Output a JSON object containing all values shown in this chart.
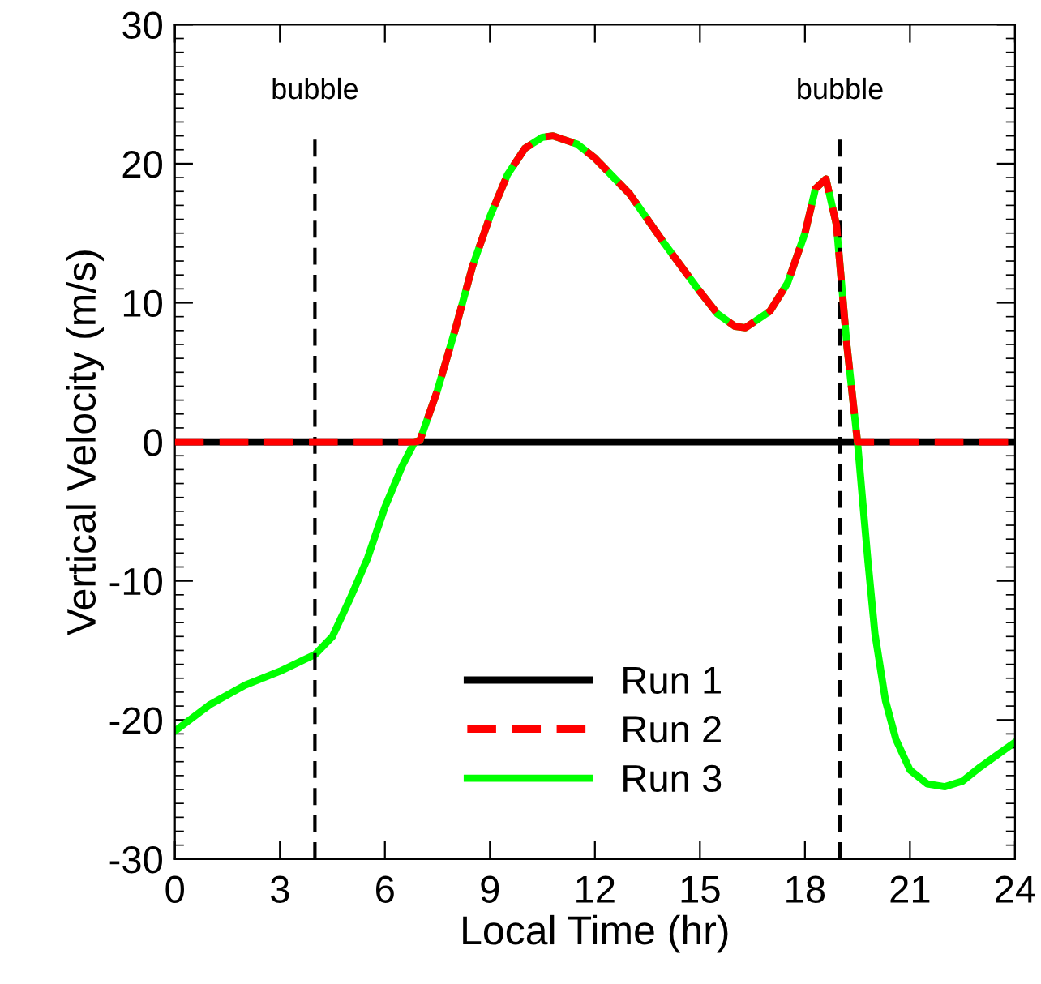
{
  "chart_data": {
    "type": "line",
    "xlabel": "Local Time (hr)",
    "ylabel": "Vertical Velocity (m/s)",
    "xlim": [
      0,
      24
    ],
    "xticks": [
      0,
      3,
      6,
      9,
      12,
      15,
      18,
      21,
      24
    ],
    "ylim": [
      -30,
      30
    ],
    "yticks": [
      -30,
      -20,
      -10,
      0,
      10,
      20,
      30,
      {
        "value": -29,
        "label": null
      },
      {
        "value": -28,
        "label": null
      },
      {
        "value": -27,
        "label": null
      },
      {
        "value": -26,
        "label": null
      },
      {
        "value": -25,
        "label": null
      },
      {
        "value": -24,
        "label": null
      },
      {
        "value": -23,
        "label": null
      },
      {
        "value": -22,
        "label": null
      },
      {
        "value": -21,
        "label": null
      },
      {
        "value": -19,
        "label": null
      },
      {
        "value": -18,
        "label": null
      },
      {
        "value": -17,
        "label": null
      },
      {
        "value": -16,
        "label": null
      },
      {
        "value": -15,
        "label": null
      },
      {
        "value": -14,
        "label": null
      },
      {
        "value": -13,
        "label": null
      },
      {
        "value": -12,
        "label": null
      },
      {
        "value": -11,
        "label": null
      },
      {
        "value": -9,
        "label": null
      },
      {
        "value": -8,
        "label": null
      },
      {
        "value": -7,
        "label": null
      },
      {
        "value": -6,
        "label": null
      },
      {
        "value": -5,
        "label": null
      },
      {
        "value": -4,
        "label": null
      },
      {
        "value": -3,
        "label": null
      },
      {
        "value": -2,
        "label": null
      },
      {
        "value": -1,
        "label": null
      },
      {
        "value": 1,
        "label": null
      },
      {
        "value": 2,
        "label": null
      },
      {
        "value": 3,
        "label": null
      },
      {
        "value": 4,
        "label": null
      },
      {
        "value": 5,
        "label": null
      },
      {
        "value": 6,
        "label": null
      },
      {
        "value": 7,
        "label": null
      },
      {
        "value": 8,
        "label": null
      },
      {
        "value": 9,
        "label": null
      },
      {
        "value": 11,
        "label": null
      },
      {
        "value": 12,
        "label": null
      },
      {
        "value": 13,
        "label": null
      },
      {
        "value": 14,
        "label": null
      },
      {
        "value": 15,
        "label": null
      },
      {
        "value": 16,
        "label": null
      },
      {
        "value": 17,
        "label": null
      },
      {
        "value": 18,
        "label": null
      },
      {
        "value": 19,
        "label": null
      },
      {
        "value": 21,
        "label": null
      },
      {
        "value": 22,
        "label": null
      },
      {
        "value": 23,
        "label": null
      },
      {
        "value": 24,
        "label": null
      },
      {
        "value": 25,
        "label": null
      },
      {
        "value": 26,
        "label": null
      },
      {
        "value": 27,
        "label": null
      },
      {
        "value": 28,
        "label": null
      },
      {
        "value": 29,
        "label": null
      }
    ],
    "grid": false,
    "legend": "bottom",
    "marker": "none",
    "ref_lines": [
      {
        "axis": "x",
        "value": 4,
        "label": "bubble",
        "color": "#000000",
        "line_style": "dashed"
      },
      {
        "axis": "x",
        "value": 19,
        "label": "bubble",
        "color": "#000000",
        "line_style": "dashed"
      }
    ],
    "series": [
      {
        "name": "Run 1",
        "color": "#000000",
        "line_style": "solid",
        "x": [
          0,
          24
        ],
        "values": [
          0,
          0
        ]
      },
      {
        "name": "Run 2",
        "color": "#ff0000",
        "line_style": "dashed",
        "x": [
          0,
          6.85,
          7,
          7.5,
          8,
          8.5,
          9,
          9.5,
          10,
          10.5,
          10.8,
          11.5,
          12,
          13,
          14,
          15,
          15.5,
          16,
          16.3,
          17,
          17.5,
          18,
          18.3,
          18.6,
          18.9,
          19.2,
          19.5,
          24
        ],
        "values": [
          0,
          0,
          0.1,
          3.7,
          8.0,
          12.6,
          16.2,
          19.2,
          21.1,
          21.9,
          22.0,
          21.4,
          20.4,
          17.8,
          14.2,
          10.8,
          9.2,
          8.3,
          8.2,
          9.4,
          11.4,
          15.0,
          18.2,
          18.9,
          15.6,
          6.9,
          0,
          0
        ]
      },
      {
        "name": "Run 3",
        "color": "#00ff00",
        "line_style": "solid",
        "x": [
          0,
          1,
          2,
          3,
          4,
          4.5,
          5,
          5.5,
          6,
          6.5,
          6.85,
          7,
          7.5,
          8,
          8.5,
          9,
          9.5,
          10,
          10.5,
          10.8,
          11.5,
          12,
          13,
          14,
          15,
          15.5,
          16,
          16.3,
          17,
          17.5,
          18,
          18.3,
          18.6,
          18.9,
          19.2,
          19.5,
          19.8,
          20,
          20.3,
          20.6,
          21,
          21.5,
          22,
          22.5,
          23,
          23.5,
          24
        ],
        "values": [
          -20.8,
          -18.9,
          -17.5,
          -16.5,
          -15.3,
          -14.0,
          -11.3,
          -8.4,
          -4.7,
          -1.7,
          0,
          0.1,
          3.7,
          8.0,
          12.6,
          16.2,
          19.2,
          21.1,
          21.9,
          22.0,
          21.4,
          20.4,
          17.8,
          14.2,
          10.8,
          9.2,
          8.3,
          8.2,
          9.4,
          11.4,
          15.0,
          18.2,
          18.9,
          15.6,
          6.9,
          0,
          -8.6,
          -13.8,
          -18.6,
          -21.4,
          -23.6,
          -24.6,
          -24.8,
          -24.4,
          -23.4,
          -22.5,
          -21.6
        ]
      }
    ]
  }
}
